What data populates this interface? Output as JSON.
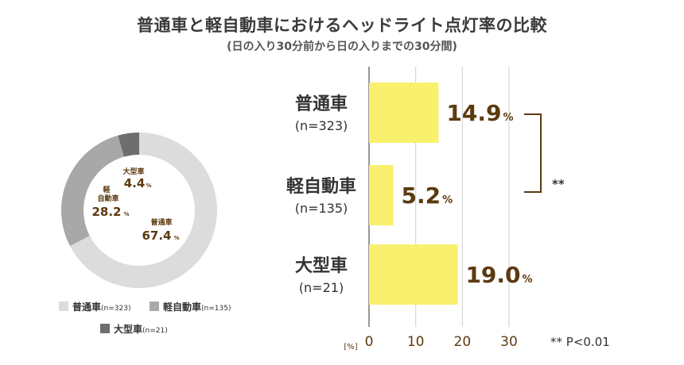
{
  "title": "普通車と軽自動車におけるヘッドライト点灯率の比較",
  "subtitle": "(日の入り30分前から日の入りまでの30分間)",
  "chart_data": [
    {
      "type": "pie",
      "title": "",
      "slices": [
        {
          "label_top": "普通車",
          "label_mid": "",
          "value": 67.4,
          "value_text": "67.4",
          "unit": "%",
          "color": "#dcdcdc"
        },
        {
          "label_top": "軽",
          "label_mid": "自動車",
          "value": 28.2,
          "value_text": "28.2",
          "unit": "%",
          "color": "#a8a8a8"
        },
        {
          "label_top": "大型車",
          "label_mid": "",
          "value": 4.4,
          "value_text": "4.4",
          "unit": "%",
          "color": "#6e6e6e"
        }
      ],
      "legend": [
        {
          "name": "普通車",
          "n": "(n=323)",
          "color": "#dcdcdc"
        },
        {
          "name": "軽自動車",
          "n": "(n=135)",
          "color": "#a8a8a8"
        },
        {
          "name": "大型車",
          "n": "(n=21)",
          "color": "#6e6e6e"
        }
      ],
      "legend_placement": "bottom"
    },
    {
      "type": "bar",
      "orientation": "horizontal",
      "categories": [
        "普通車",
        "軽自動車",
        "大型車"
      ],
      "sublabels": [
        "(n=323)",
        "(n=135)",
        "(n=21)"
      ],
      "values": [
        14.9,
        5.2,
        19.0
      ],
      "value_labels": [
        "14.9",
        "5.2",
        "19.0"
      ],
      "value_unit": "%",
      "xlim": [
        0,
        30
      ],
      "xticks": [
        "0",
        "10",
        "20",
        "30"
      ],
      "xunit": "[%]",
      "grid": true,
      "bar_color": "#f9f06e",
      "label_color": "#5c3a10",
      "significance": {
        "marker": "**",
        "note": "** P<0.01"
      }
    }
  ]
}
